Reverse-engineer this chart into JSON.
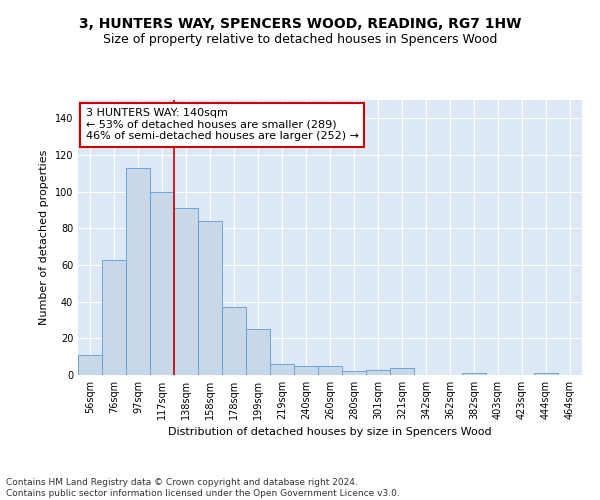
{
  "title": "3, HUNTERS WAY, SPENCERS WOOD, READING, RG7 1HW",
  "subtitle": "Size of property relative to detached houses in Spencers Wood",
  "xlabel": "Distribution of detached houses by size in Spencers Wood",
  "ylabel": "Number of detached properties",
  "categories": [
    "56sqm",
    "76sqm",
    "97sqm",
    "117sqm",
    "138sqm",
    "158sqm",
    "178sqm",
    "199sqm",
    "219sqm",
    "240sqm",
    "260sqm",
    "280sqm",
    "301sqm",
    "321sqm",
    "342sqm",
    "362sqm",
    "382sqm",
    "403sqm",
    "423sqm",
    "444sqm",
    "464sqm"
  ],
  "values": [
    11,
    63,
    113,
    100,
    91,
    84,
    37,
    25,
    6,
    5,
    5,
    2,
    3,
    4,
    0,
    0,
    1,
    0,
    0,
    1,
    0
  ],
  "bar_color": "#c8d8e8",
  "bar_edge_color": "#5b9bd5",
  "highlight_line_index": 4,
  "highlight_color": "#cc0000",
  "annotation_text": "3 HUNTERS WAY: 140sqm\n← 53% of detached houses are smaller (289)\n46% of semi-detached houses are larger (252) →",
  "annotation_box_color": "#ffffff",
  "annotation_box_edge": "#cc0000",
  "ylim": [
    0,
    150
  ],
  "yticks": [
    0,
    20,
    40,
    60,
    80,
    100,
    120,
    140
  ],
  "background_color": "#dce8f5",
  "footer": "Contains HM Land Registry data © Crown copyright and database right 2024.\nContains public sector information licensed under the Open Government Licence v3.0.",
  "title_fontsize": 10,
  "subtitle_fontsize": 9,
  "axis_label_fontsize": 8,
  "tick_fontsize": 7,
  "annotation_fontsize": 8,
  "footer_fontsize": 6.5
}
